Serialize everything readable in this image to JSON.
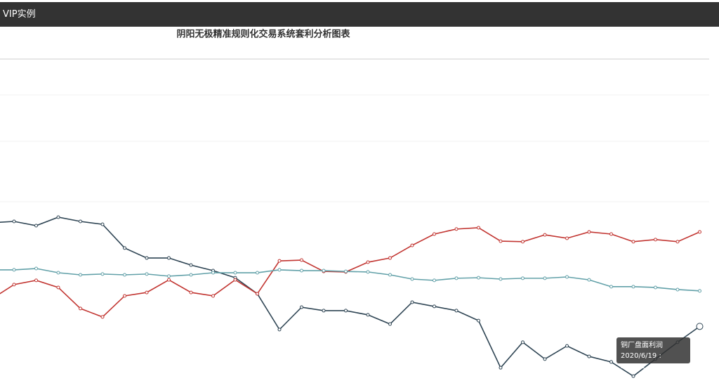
{
  "header": {
    "title": "VIP实例"
  },
  "chart_data": {
    "type": "line",
    "title": "阴阳无极精准规则化交易系统套利分析图表",
    "categories": [
      null,
      null,
      null,
      null,
      null,
      null,
      null,
      null,
      null,
      null,
      null,
      null,
      null,
      null,
      null,
      null,
      null,
      null,
      null,
      null,
      null,
      null,
      null,
      null,
      null,
      null,
      null,
      null,
      null,
      null,
      null,
      null,
      "2020/6/19"
    ],
    "ylim": [
      0,
      1250
    ],
    "series": [
      {
        "name": "铜厂盘面利润",
        "color": "#2f4554",
        "values": [
          628,
          633,
          617,
          649,
          633,
          622,
          532,
          494,
          494,
          467,
          446,
          419,
          358,
          222,
          307,
          294,
          294,
          278,
          243,
          326,
          310,
          294,
          256,
          77,
          174,
          110,
          160,
          120,
          99,
          45,
          110,
          174,
          234.11
        ]
      },
      {
        "color": "#c23531",
        "values": [
          339,
          393,
          409,
          382,
          302,
          270,
          350,
          363,
          411,
          363,
          350,
          411,
          358,
          483,
          486,
          443,
          441,
          478,
          494,
          542,
          585,
          604,
          609,
          558,
          556,
          582,
          569,
          593,
          585,
          556,
          564,
          556,
          593
        ]
      },
      {
        "color": "#61a0a8",
        "values": [
          449,
          449,
          454,
          438,
          430,
          433,
          430,
          433,
          425,
          430,
          438,
          438,
          438,
          449,
          446,
          446,
          443,
          441,
          430,
          414,
          409,
          417,
          419,
          414,
          417,
          417,
          422,
          411,
          385,
          385,
          382,
          374,
          369
        ]
      }
    ]
  }
}
